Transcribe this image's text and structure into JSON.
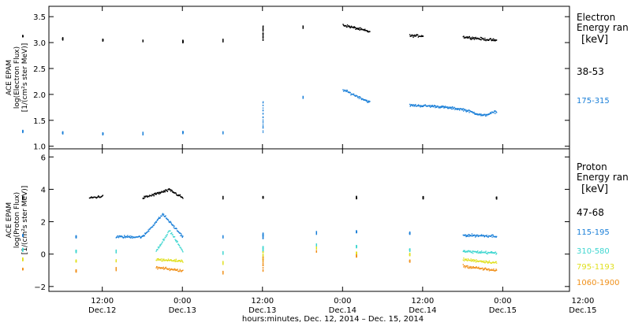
{
  "chart_data": [
    {
      "type": "scatter",
      "panel": "electron",
      "ylabel_lines": [
        "ACE EPAM",
        "log(Electron Flux)",
        "[1/(cm²s ster MeV)]"
      ],
      "ylim": [
        0.95,
        3.7
      ],
      "yticks": [
        1.0,
        1.5,
        2.0,
        2.5,
        3.0,
        3.5
      ],
      "ytick_labels": [
        "1.0",
        "1.5",
        "2.0",
        "2.5",
        "3.0",
        "3.5"
      ],
      "legend_title": [
        "Electron",
        "Energy ran",
        "[keV]"
      ],
      "series": [
        {
          "name": "38-53",
          "color": "#000000",
          "x": [
            0,
            6,
            12,
            18,
            24,
            30,
            36,
            36.01,
            42,
            48,
            52,
            58,
            60,
            66,
            71
          ],
          "y": [
            3.13,
            3.08,
            3.06,
            3.04,
            3.03,
            3.05,
            3.06,
            3.33,
            3.3,
            3.35,
            3.22,
            3.14,
            3.14,
            3.12,
            3.05
          ]
        },
        {
          "name": "175-315",
          "color": "#1a7fd8",
          "x": [
            0,
            6,
            12,
            18,
            24,
            30,
            36,
            36.01,
            42,
            48,
            52,
            58,
            62,
            66,
            69,
            71
          ],
          "y": [
            1.3,
            1.27,
            1.25,
            1.26,
            1.28,
            1.27,
            1.27,
            1.88,
            1.95,
            2.1,
            1.86,
            1.8,
            1.78,
            1.72,
            1.6,
            1.68
          ]
        }
      ]
    },
    {
      "type": "scatter",
      "panel": "proton",
      "ylabel_lines": [
        "ACE EPAM",
        "log(Proton Flux)",
        "[1/(cm²s ster MeV)]"
      ],
      "ylim": [
        -2.3,
        6.5
      ],
      "yticks": [
        -2,
        0,
        2,
        4,
        6
      ],
      "ytick_labels": [
        "−2",
        "0",
        "2",
        "4",
        "6"
      ],
      "legend_title": [
        "Proton",
        "Energy ran",
        "[keV]"
      ],
      "series": [
        {
          "name": "47-68",
          "color": "#000000",
          "x": [
            0,
            10,
            12,
            18,
            22,
            24,
            30,
            36,
            36.01,
            50,
            60,
            71
          ],
          "y": [
            3.5,
            3.5,
            3.6,
            3.5,
            4.0,
            3.5,
            3.5,
            3.55,
            3.5,
            3.5,
            3.5,
            3.5
          ]
        },
        {
          "name": "115-195",
          "color": "#1a7fd8",
          "x": [
            0,
            8,
            14,
            18,
            21,
            24,
            30,
            36,
            36.01,
            44,
            50,
            58,
            66,
            71
          ],
          "y": [
            1.2,
            1.1,
            1.1,
            1.1,
            2.5,
            1.1,
            1.1,
            1.05,
            1.3,
            1.35,
            1.4,
            1.3,
            1.2,
            1.15
          ]
        },
        {
          "name": "310-580",
          "color": "#3fd6d0",
          "x": [
            0,
            8,
            14,
            20,
            22,
            24,
            30,
            36,
            36.01,
            44,
            50,
            58,
            66,
            71
          ],
          "y": [
            0.3,
            0.2,
            0.2,
            0.2,
            1.5,
            0.2,
            0.1,
            0.2,
            0.5,
            0.6,
            0.5,
            0.3,
            0.2,
            0.1
          ]
        },
        {
          "name": "795-1193",
          "color": "#e0e020",
          "x": [
            0,
            8,
            14,
            20,
            24,
            30,
            36,
            36.01,
            44,
            50,
            58,
            66,
            71
          ],
          "y": [
            -0.3,
            -0.4,
            -0.4,
            -0.3,
            -0.4,
            -0.5,
            -0.4,
            0.2,
            0.4,
            0.1,
            0.0,
            -0.3,
            -0.5
          ]
        },
        {
          "name": "1060-1900",
          "color": "#f0901a",
          "x": [
            0,
            8,
            14,
            20,
            24,
            30,
            36,
            36.01,
            44,
            50,
            58,
            66,
            71
          ],
          "y": [
            -0.9,
            -1.0,
            -0.9,
            -0.8,
            -1.0,
            -1.1,
            -1.0,
            -0.1,
            0.2,
            -0.1,
            -0.4,
            -0.7,
            -1.0
          ]
        }
      ]
    }
  ],
  "x_axis": {
    "unit": "hours since 2014-12-12 00:00 (x values above)",
    "xlim": [
      4,
      82
    ],
    "ticks": [
      {
        "x": 12,
        "time": "12:00",
        "date": "Dec.12"
      },
      {
        "x": 24,
        "time": "0:00",
        "date": "Dec.13"
      },
      {
        "x": 36,
        "time": "12:00",
        "date": "Dec.13"
      },
      {
        "x": 48,
        "time": "0:00",
        "date": "Dec.14"
      },
      {
        "x": 60,
        "time": "12:00",
        "date": "Dec.14"
      },
      {
        "x": 72,
        "time": "0:00",
        "date": "Dec.15"
      },
      {
        "x": 84,
        "time": "12:00",
        "date": "Dec.15"
      }
    ],
    "xlabel": "hours:minutes, Dec. 12, 2014 – Dec. 15, 2014"
  }
}
